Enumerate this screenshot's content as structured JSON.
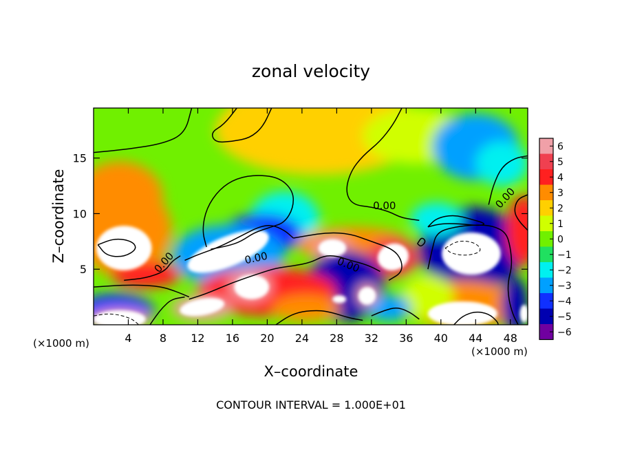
{
  "chart_data": {
    "type": "heatmap",
    "title": "zonal velocity",
    "xlabel": "X–coordinate",
    "ylabel": "Z–coordinate",
    "x_unit_left": "(×1000 m)",
    "x_unit_right": "(×1000 m)",
    "footer": "CONTOUR INTERVAL = 1.000E+01",
    "xlim": [
      0,
      50
    ],
    "ylim": [
      0,
      19.5
    ],
    "x_ticks": [
      4,
      8,
      12,
      16,
      20,
      24,
      28,
      32,
      36,
      40,
      44,
      48
    ],
    "y_ticks": [
      5,
      10,
      15
    ],
    "colorbar": {
      "range": [
        -6,
        6
      ],
      "ticks": [
        6,
        5,
        4,
        3,
        2,
        1,
        0,
        -1,
        -2,
        -3,
        -4,
        -5,
        -6
      ],
      "tick_labels": [
        "6",
        "5",
        "4",
        "3",
        "2",
        "1",
        "0",
        "−1",
        "−2",
        "−3",
        "−4",
        "−5",
        "−6"
      ],
      "colors": [
        "#f0a0a8",
        "#f04050",
        "#ff2020",
        "#ff8c00",
        "#ffd000",
        "#d0ff00",
        "#70f000",
        "#20e060",
        "#00f0f0",
        "#00a0ff",
        "#1030ff",
        "#0000b0",
        "#7000a0"
      ]
    },
    "contour_labels": [
      {
        "text": "0.00",
        "x": 33.5,
        "y": 10.4,
        "angle": 0
      },
      {
        "text": "0.00",
        "x": 18.8,
        "y": 5.7,
        "angle": -12
      },
      {
        "text": "0.00",
        "x": 29.2,
        "y": 5.1,
        "angle": 22
      },
      {
        "text": "0.00",
        "x": 8.4,
        "y": 5.4,
        "angle": -48
      },
      {
        "text": "0.00",
        "x": 47.7,
        "y": 11.2,
        "angle": -48
      }
    ],
    "field_blobs": [
      {
        "x": 26,
        "y": 17.5,
        "rx": 12,
        "ry": 4,
        "v": 2.0
      },
      {
        "x": 20,
        "y": 18.5,
        "rx": 5,
        "ry": 2.5,
        "v": 2.0
      },
      {
        "x": 37,
        "y": 17,
        "rx": 6,
        "ry": 2.5,
        "v": 1.5
      },
      {
        "x": 44,
        "y": 16,
        "rx": 5,
        "ry": 3,
        "v": -2.5
      },
      {
        "x": 47,
        "y": 14.5,
        "rx": 3,
        "ry": 2,
        "v": -1.5
      },
      {
        "x": 22,
        "y": 9.5,
        "rx": 4,
        "ry": 2.5,
        "v": -1.5
      },
      {
        "x": 19.5,
        "y": 8.2,
        "rx": 4.5,
        "ry": 1.8,
        "v": -3.5
      },
      {
        "x": 16,
        "y": 6.8,
        "rx": 5,
        "ry": 1.6,
        "v": 6.0
      },
      {
        "x": 15.5,
        "y": 6.2,
        "rx": 6.5,
        "ry": 2.8,
        "v": -2.5
      },
      {
        "x": 3.5,
        "y": 7.3,
        "rx": 3.8,
        "ry": 2.6,
        "v": 6.0
      },
      {
        "x": 3.5,
        "y": 8.5,
        "rx": 5.5,
        "ry": 4.2,
        "v": 3.5
      },
      {
        "x": 3,
        "y": 11.5,
        "rx": 5,
        "ry": 3.2,
        "v": 3.0
      },
      {
        "x": 43.5,
        "y": 6.5,
        "rx": 4,
        "ry": 2.3,
        "v": 6.0
      },
      {
        "x": 43.5,
        "y": 6.8,
        "rx": 6,
        "ry": 3.8,
        "v": -4.5
      },
      {
        "x": 49.5,
        "y": 8.5,
        "rx": 2,
        "ry": 3.2,
        "v": 4.5
      },
      {
        "x": 30,
        "y": 7.2,
        "rx": 6.5,
        "ry": 1.6,
        "v": 3.5
      },
      {
        "x": 34.5,
        "y": 6,
        "rx": 3,
        "ry": 1.8,
        "v": 5.5
      },
      {
        "x": 27.5,
        "y": 6.8,
        "rx": 2.2,
        "ry": 1.1,
        "v": 6.0
      },
      {
        "x": 29,
        "y": 3.5,
        "rx": 4.5,
        "ry": 3.2,
        "v": -4.5
      },
      {
        "x": 20,
        "y": 3,
        "rx": 8,
        "ry": 2.2,
        "v": 4.0
      },
      {
        "x": 18,
        "y": 3.5,
        "rx": 2.5,
        "ry": 1.4,
        "v": 6.0
      },
      {
        "x": 12.5,
        "y": 1.5,
        "rx": 3.5,
        "ry": 1.1,
        "v": 6.0
      },
      {
        "x": 2.5,
        "y": 1.2,
        "rx": 4.5,
        "ry": 1.6,
        "v": -4.0
      },
      {
        "x": 3,
        "y": 0.5,
        "rx": 3.5,
        "ry": 0.9,
        "v": 6.0
      },
      {
        "x": 42.5,
        "y": 1,
        "rx": 5,
        "ry": 1.4,
        "v": 6.0
      },
      {
        "x": 42.5,
        "y": 1.8,
        "rx": 6.5,
        "ry": 2.2,
        "v": 3.0
      },
      {
        "x": 38.5,
        "y": 2.5,
        "rx": 3,
        "ry": 2,
        "v": 1.5
      },
      {
        "x": 24.5,
        "y": 1.5,
        "rx": 4,
        "ry": 1.2,
        "v": 3.0
      },
      {
        "x": 34,
        "y": 1.5,
        "rx": 2.5,
        "ry": 1.2,
        "v": -2.5
      },
      {
        "x": 31.5,
        "y": 2.7,
        "rx": 1.2,
        "ry": 1.0,
        "v": 6.0
      },
      {
        "x": 48.5,
        "y": 1.8,
        "rx": 1.5,
        "ry": 2.5,
        "v": -4.5
      },
      {
        "x": 6,
        "y": 4.5,
        "rx": 4,
        "ry": 1.2,
        "v": 4.0
      },
      {
        "x": 39.5,
        "y": 9.5,
        "rx": 3,
        "ry": 1.5,
        "v": -2.0
      }
    ],
    "white_patches": [
      {
        "x": 3.5,
        "y": 6.9,
        "rx": 3.2,
        "ry": 2.0,
        "rot": 0
      },
      {
        "x": 15.5,
        "y": 6.6,
        "rx": 5.0,
        "ry": 1.35,
        "rot": -22
      },
      {
        "x": 43.5,
        "y": 6.4,
        "rx": 3.4,
        "ry": 1.9,
        "rot": 0
      },
      {
        "x": 34.5,
        "y": 6.1,
        "rx": 1.8,
        "ry": 1.2,
        "rot": -15
      },
      {
        "x": 27.5,
        "y": 6.9,
        "rx": 1.6,
        "ry": 0.8,
        "rot": 0
      },
      {
        "x": 18.2,
        "y": 3.4,
        "rx": 2.0,
        "ry": 1.1,
        "rot": 0
      },
      {
        "x": 12.5,
        "y": 1.6,
        "rx": 2.6,
        "ry": 0.75,
        "rot": -10
      },
      {
        "x": 31.5,
        "y": 2.6,
        "rx": 1.0,
        "ry": 0.8,
        "rot": 30
      },
      {
        "x": 42.5,
        "y": 1.0,
        "rx": 4.0,
        "ry": 1.1,
        "rot": 0
      },
      {
        "x": 3.0,
        "y": 0.5,
        "rx": 3.0,
        "ry": 0.8,
        "rot": 0
      },
      {
        "x": 28.3,
        "y": 2.3,
        "rx": 0.8,
        "ry": 0.35,
        "rot": 0
      },
      {
        "x": 49.6,
        "y": 1.0,
        "rx": 0.5,
        "ry": 0.8,
        "rot": 0
      }
    ],
    "contour_lines": [
      {
        "style": "solid",
        "points": [
          [
            0,
            15.5
          ],
          [
            4,
            15.8
          ],
          [
            8,
            16.3
          ],
          [
            10.5,
            17.2
          ],
          [
            11.3,
            19.5
          ]
        ]
      },
      {
        "style": "solid",
        "points": [
          [
            20.5,
            19.5
          ],
          [
            19.5,
            17.8
          ],
          [
            18,
            16.8
          ],
          [
            16,
            16.5
          ],
          [
            14,
            16.4
          ],
          [
            13.5,
            17.3
          ],
          [
            15,
            18
          ],
          [
            16.5,
            19.5
          ]
        ]
      },
      {
        "style": "solid",
        "points": [
          [
            35.5,
            19.5
          ],
          [
            34.5,
            18
          ],
          [
            33,
            16.5
          ],
          [
            31,
            15.2
          ],
          [
            29.6,
            13.8
          ],
          [
            29,
            12
          ],
          [
            29.8,
            10.8
          ],
          [
            32,
            10.6
          ],
          [
            34,
            10.2
          ],
          [
            35.5,
            9.6
          ],
          [
            37.5,
            9.4
          ]
        ]
      },
      {
        "style": "solid",
        "points": [
          [
            50,
            15.2
          ],
          [
            48.5,
            15
          ],
          [
            47,
            14.2
          ],
          [
            46,
            12.5
          ],
          [
            45.5,
            10.8
          ]
        ]
      },
      {
        "style": "solid",
        "points": [
          [
            13,
            7
          ],
          [
            12.5,
            8.5
          ],
          [
            13,
            10.5
          ],
          [
            14.5,
            12.2
          ],
          [
            16.5,
            13.2
          ],
          [
            19,
            13.5
          ],
          [
            21.5,
            13.2
          ],
          [
            23,
            12
          ],
          [
            23,
            10.5
          ],
          [
            22,
            9.2
          ],
          [
            20.5,
            8.8
          ],
          [
            18.5,
            8.3
          ],
          [
            17,
            7.5
          ],
          [
            15.5,
            7.1
          ],
          [
            13.5,
            6.8
          ]
        ]
      },
      {
        "style": "solid",
        "points": [
          [
            10.5,
            5.8
          ],
          [
            12,
            6.3
          ],
          [
            14.5,
            7
          ],
          [
            17,
            8
          ],
          [
            19,
            8.8
          ],
          [
            20.5,
            9
          ],
          [
            22,
            8.5
          ],
          [
            23,
            7.8
          ]
        ]
      },
      {
        "style": "solid",
        "points": [
          [
            23,
            7.8
          ],
          [
            24.5,
            8
          ],
          [
            27,
            8.3
          ],
          [
            29.5,
            8.2
          ],
          [
            32,
            7.5
          ],
          [
            34.5,
            6.8
          ],
          [
            35.5,
            5.8
          ],
          [
            35.5,
            4.7
          ],
          [
            34,
            4
          ]
        ]
      },
      {
        "style": "solid",
        "points": [
          [
            3.5,
            4
          ],
          [
            6,
            4.2
          ],
          [
            8.2,
            4.8
          ],
          [
            9,
            5.7
          ],
          [
            10,
            6.2
          ]
        ]
      },
      {
        "style": "solid",
        "points": [
          [
            0,
            3.4
          ],
          [
            4,
            3.6
          ],
          [
            7.5,
            3.5
          ],
          [
            9.5,
            3
          ],
          [
            11,
            2.5
          ]
        ]
      },
      {
        "style": "solid",
        "points": [
          [
            11,
            2.3
          ],
          [
            13,
            2.8
          ],
          [
            16,
            3.8
          ],
          [
            19,
            4.6
          ],
          [
            21,
            5.1
          ],
          [
            23,
            5.3
          ],
          [
            25,
            5.6
          ],
          [
            26.5,
            6.2
          ],
          [
            28,
            6.2
          ],
          [
            29.5,
            5.8
          ],
          [
            31.5,
            5.4
          ],
          [
            33,
            4.8
          ]
        ]
      },
      {
        "style": "solid",
        "points": [
          [
            21,
            0
          ],
          [
            22.5,
            0.8
          ],
          [
            24,
            1.2
          ],
          [
            26,
            1.3
          ],
          [
            27.5,
            1.1
          ],
          [
            29.5,
            0.6
          ],
          [
            31,
            0.4
          ]
        ]
      },
      {
        "style": "solid",
        "points": [
          [
            32,
            0.8
          ],
          [
            33.5,
            1.3
          ],
          [
            35,
            1.6
          ],
          [
            36.5,
            1.1
          ],
          [
            37.5,
            0.5
          ]
        ]
      },
      {
        "style": "solid",
        "points": [
          [
            6.5,
            0
          ],
          [
            7.2,
            0.8
          ],
          [
            8,
            1.6
          ],
          [
            9,
            2.3
          ],
          [
            10.5,
            2.5
          ]
        ]
      },
      {
        "style": "solid",
        "points": [
          [
            38.5,
            5
          ],
          [
            39,
            6.8
          ],
          [
            39.5,
            8.3
          ],
          [
            41.5,
            8.8
          ],
          [
            44,
            9
          ],
          [
            46,
            8.9
          ],
          [
            47.5,
            8.3
          ],
          [
            48,
            7
          ],
          [
            48.2,
            5.3
          ],
          [
            47.7,
            3.8
          ],
          [
            47.8,
            2.3
          ],
          [
            48.3,
            0.9
          ],
          [
            48.9,
            0
          ]
        ]
      },
      {
        "style": "solid",
        "points": [
          [
            50,
            8.5
          ],
          [
            49,
            9.3
          ],
          [
            48.4,
            10.2
          ],
          [
            48.8,
            11.3
          ],
          [
            50,
            11.7
          ]
        ]
      },
      {
        "style": "solid",
        "points": [
          [
            38.5,
            8.8
          ],
          [
            39.5,
            9.6
          ],
          [
            41.5,
            9.9
          ],
          [
            43.5,
            9.5
          ],
          [
            45.2,
            9.1
          ],
          [
            44.5,
            8.9
          ],
          [
            42,
            9.1
          ],
          [
            40,
            9.1
          ],
          [
            38.5,
            8.8
          ]
        ]
      },
      {
        "style": "solid",
        "points": [
          [
            37.3,
            7.3
          ],
          [
            37.8,
            7.9
          ],
          [
            38.3,
            7.5
          ],
          [
            37.7,
            7.0
          ],
          [
            37.3,
            7.3
          ]
        ]
      },
      {
        "style": "solid",
        "points": [
          [
            0.5,
            7.2
          ],
          [
            2.5,
            7.8
          ],
          [
            4.5,
            7.5
          ],
          [
            5,
            6.8
          ],
          [
            3.5,
            6.1
          ],
          [
            1.5,
            6.2
          ],
          [
            0.5,
            7.2
          ]
        ]
      },
      {
        "style": "solid",
        "points": [
          [
            41.5,
            0
          ],
          [
            42.5,
            0.8
          ],
          [
            44,
            1.2
          ],
          [
            45.5,
            1
          ],
          [
            46.5,
            0.3
          ],
          [
            46.6,
            0
          ]
        ]
      },
      {
        "style": "dashed",
        "points": [
          [
            40.5,
            6.9
          ],
          [
            42,
            7.6
          ],
          [
            44,
            7.4
          ],
          [
            44.8,
            6.6
          ],
          [
            43,
            6.2
          ],
          [
            41.2,
            6.4
          ],
          [
            40.5,
            6.9
          ]
        ]
      },
      {
        "style": "dashed",
        "points": [
          [
            0,
            0.8
          ],
          [
            1.5,
            1
          ],
          [
            3,
            0.9
          ],
          [
            4.5,
            0.5
          ],
          [
            5.2,
            0
          ]
        ]
      }
    ]
  }
}
